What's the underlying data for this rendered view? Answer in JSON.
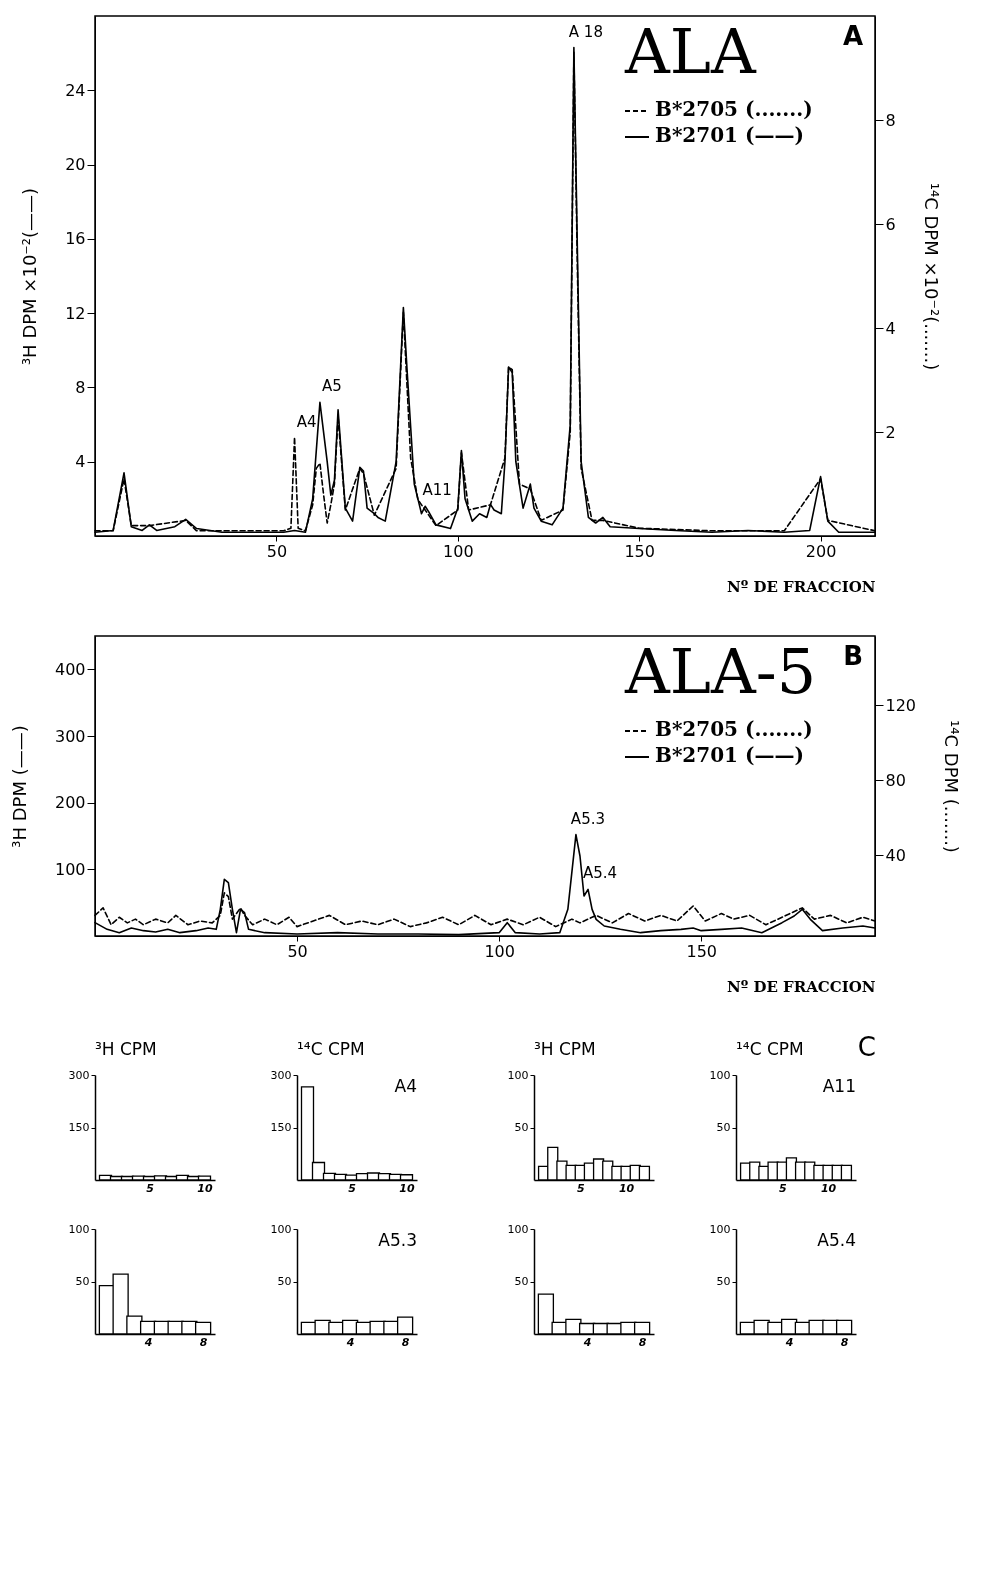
{
  "chart_data": [
    {
      "type": "line",
      "title": "ALA",
      "xlabel": "Nº DE FRACCION",
      "ylabel": "³H DPM ×10⁻²(——)",
      "y2label": "¹⁴C DPM ×10⁻²(.......)",
      "xlim": [
        0,
        215
      ],
      "xticks": [
        50,
        100,
        150,
        200
      ],
      "ylim": [
        0,
        28
      ],
      "yticks": [
        4,
        8,
        12,
        16,
        20,
        24
      ],
      "y2lim": [
        0,
        10
      ],
      "y2ticks": [
        2,
        4,
        6,
        8
      ],
      "legend": "top right",
      "grid": false,
      "series": [
        {
          "name": "B*2705 (.......)",
          "color": "#000000",
          "line_style": "dashed",
          "axis": "y2",
          "x": [
            0,
            5,
            8,
            10,
            15,
            25,
            28,
            40,
            52,
            54,
            55,
            56,
            58,
            60,
            61,
            62,
            63,
            64,
            65,
            66,
            67,
            69,
            73,
            74,
            77,
            83,
            85,
            87,
            89,
            91,
            94,
            100,
            101,
            103,
            109,
            113,
            114,
            115,
            117,
            120,
            123,
            129,
            131,
            132,
            133,
            134,
            137,
            140,
            150,
            170,
            190,
            200,
            202,
            215
          ],
          "values": [
            0.1,
            0.1,
            1.1,
            0.2,
            0.2,
            0.3,
            0.1,
            0.1,
            0.1,
            0.15,
            1.9,
            0.15,
            0.1,
            0.6,
            1.3,
            1.4,
            0.8,
            0.25,
            0.6,
            1.0,
            2.3,
            0.5,
            1.3,
            1.2,
            0.4,
            1.3,
            4.3,
            1.5,
            0.7,
            0.5,
            0.2,
            0.5,
            1.6,
            0.5,
            0.6,
            1.5,
            3.25,
            3.2,
            1.0,
            0.9,
            0.3,
            0.5,
            2.0,
            9.3,
            5,
            1.3,
            0.3,
            0.3,
            0.15,
            0.1,
            0.1,
            1.1,
            0.3,
            0.1
          ]
        },
        {
          "name": "B*2701 (——)",
          "color": "#000000",
          "line_style": "solid",
          "x": [
            0,
            5,
            8,
            10,
            13,
            15,
            17,
            22,
            25,
            28,
            35,
            45,
            52,
            55,
            58,
            60,
            62,
            64,
            65,
            66,
            67,
            69,
            71,
            73,
            74,
            75,
            77,
            78,
            80,
            83,
            85,
            86,
            88,
            89,
            90,
            91,
            92,
            94,
            98,
            100,
            101,
            102,
            104,
            106,
            108,
            109,
            110,
            112,
            113,
            114,
            115,
            116,
            118,
            120,
            121,
            123,
            126,
            129,
            131,
            132,
            133,
            134,
            136,
            138,
            140,
            142,
            150,
            160,
            170,
            180,
            190,
            197,
            200,
            202,
            205,
            215
          ],
          "values": [
            0.2,
            0.3,
            3.4,
            0.5,
            0.3,
            0.6,
            0.3,
            0.5,
            0.9,
            0.4,
            0.2,
            0.2,
            0.2,
            0.3,
            0.2,
            2,
            7.2,
            4,
            2.2,
            3,
            6.8,
            1.5,
            0.8,
            3.7,
            3.5,
            1.5,
            1.2,
            1,
            0.8,
            4,
            12.3,
            9,
            2.8,
            2,
            1.2,
            1.6,
            1.3,
            0.6,
            0.4,
            1.5,
            4.6,
            2,
            0.8,
            1.2,
            1.0,
            1.7,
            1.4,
            1.2,
            4,
            9.1,
            8.8,
            4,
            1.5,
            2.8,
            1.5,
            0.8,
            0.6,
            1.5,
            6,
            26.3,
            15,
            4,
            1.0,
            0.7,
            1.0,
            0.5,
            0.4,
            0.3,
            0.2,
            0.3,
            0.2,
            0.3,
            3.2,
            0.8,
            0.2,
            0.2
          ]
        }
      ],
      "annotations": [
        {
          "text": "A 18",
          "x": 132,
          "y": 26.3
        },
        {
          "text": "A5",
          "x": 62,
          "y": 7.2
        },
        {
          "text": "A4",
          "x": 55,
          "y": 5.3
        },
        {
          "text": "A11",
          "x": 91,
          "y": 1.6
        },
        "A"
      ]
    },
    {
      "type": "line",
      "title": "ALA-5",
      "xlabel": "Nº DE FRACCION",
      "ylabel": "³H DPM (——)",
      "y2label": "¹⁴C DPM (.......)",
      "xlim": [
        0,
        193
      ],
      "xticks": [
        50,
        100,
        150
      ],
      "ylim": [
        0,
        450
      ],
      "yticks": [
        100,
        200,
        300,
        400
      ],
      "y2lim": [
        -3,
        157
      ],
      "y2ticks": [
        40,
        80,
        120
      ],
      "legend": "top right",
      "grid": false,
      "series": [
        {
          "name": "B*2705 (.......)",
          "color": "#000000",
          "line_style": "dashed",
          "axis": "y2",
          "x": [
            0,
            2,
            4,
            6,
            8,
            10,
            12,
            15,
            18,
            20,
            23,
            26,
            29,
            31,
            32,
            33,
            34,
            36,
            37,
            39,
            42,
            45,
            48,
            50,
            54,
            58,
            62,
            66,
            70,
            74,
            78,
            82,
            86,
            90,
            94,
            98,
            102,
            106,
            110,
            114,
            118,
            120,
            124,
            128,
            132,
            136,
            140,
            144,
            148,
            151,
            155,
            158,
            162,
            166,
            170,
            175,
            178,
            182,
            186,
            190,
            193
          ],
          "values": [
            8,
            12,
            3,
            7,
            4,
            6,
            3,
            6,
            4,
            8,
            3,
            5,
            4,
            8,
            20,
            18,
            6,
            12,
            8,
            3,
            6,
            3,
            7,
            2,
            5,
            8,
            3,
            5,
            3,
            6,
            2,
            4,
            7,
            3,
            8,
            3,
            6,
            3,
            7,
            2,
            6,
            4,
            8,
            4,
            9,
            5,
            8,
            5,
            13,
            5,
            9,
            6,
            8,
            3,
            7,
            12,
            6,
            8,
            4,
            7,
            5
          ]
        },
        {
          "name": "B*2701 (——)",
          "color": "#000000",
          "line_style": "solid",
          "x": [
            0,
            3,
            6,
            9,
            12,
            15,
            18,
            21,
            25,
            28,
            30,
            31,
            32,
            33,
            34,
            35,
            36,
            37,
            38,
            42,
            50,
            60,
            70,
            80,
            90,
            100,
            102,
            104,
            110,
            115,
            117,
            119,
            120,
            121,
            122,
            123,
            124,
            126,
            130,
            135,
            140,
            145,
            148,
            150,
            155,
            160,
            165,
            170,
            173,
            175,
            177,
            180,
            185,
            190,
            193
          ],
          "values": [
            20,
            10,
            5,
            12,
            8,
            6,
            10,
            5,
            8,
            12,
            10,
            40,
            85,
            80,
            40,
            5,
            40,
            35,
            10,
            5,
            3,
            5,
            3,
            3,
            2,
            5,
            20,
            5,
            3,
            5,
            40,
            152,
            120,
            60,
            70,
            40,
            25,
            15,
            10,
            5,
            8,
            10,
            12,
            8,
            10,
            12,
            5,
            20,
            30,
            40,
            25,
            8,
            12,
            15,
            12
          ]
        }
      ],
      "annotations": [
        {
          "text": "A5.3",
          "x": 119,
          "y": 152
        },
        {
          "text": "A5.4",
          "x": 122,
          "y": 70
        },
        "B"
      ]
    },
    {
      "type": "bar",
      "title": "³H CPM",
      "x": [
        1,
        2,
        3,
        4,
        5,
        6,
        7,
        8,
        9,
        10
      ],
      "values": [
        13,
        10,
        10,
        11,
        10,
        12,
        10,
        13,
        10,
        11
      ],
      "color": "#ffffff",
      "xlim": [
        0.5,
        10.5
      ],
      "xticks": [
        5,
        10
      ],
      "ylim": [
        0,
        300
      ],
      "yticks": [
        150,
        300
      ]
    },
    {
      "type": "bar",
      "title": "¹⁴C CPM",
      "x": [
        1,
        2,
        3,
        4,
        5,
        6,
        7,
        8,
        9,
        10
      ],
      "values": [
        266,
        50,
        19,
        16,
        14,
        18,
        20,
        18,
        16,
        15
      ],
      "color": "#ffffff",
      "xlim": [
        0.5,
        10.5
      ],
      "xticks": [
        5,
        10
      ],
      "ylim": [
        0,
        300
      ],
      "yticks": [
        150,
        300
      ],
      "annotations": [
        "A4"
      ]
    },
    {
      "type": "bar",
      "title": "³H CPM",
      "x": [
        1,
        2,
        3,
        4,
        5,
        6,
        7,
        8,
        9,
        10,
        11,
        12
      ],
      "values": [
        13,
        31,
        18,
        14,
        14,
        16,
        20,
        18,
        13,
        13,
        14,
        13
      ],
      "color": "#ffffff",
      "xlim": [
        0.5,
        12.5
      ],
      "xticks": [
        5,
        10
      ],
      "ylim": [
        0,
        100
      ],
      "yticks": [
        50,
        100
      ]
    },
    {
      "type": "bar",
      "title": "¹⁴C CPM",
      "x": [
        1,
        2,
        3,
        4,
        5,
        6,
        7,
        8,
        9,
        10,
        11,
        12
      ],
      "values": [
        16,
        17,
        13,
        17,
        17,
        21,
        17,
        17,
        14,
        14,
        14,
        14
      ],
      "color": "#ffffff",
      "xlim": [
        0.5,
        12.5
      ],
      "xticks": [
        5,
        10
      ],
      "ylim": [
        0,
        100
      ],
      "yticks": [
        50,
        100
      ],
      "annotations": [
        "A11",
        "C"
      ]
    },
    {
      "type": "bar",
      "x": [
        1,
        2,
        3,
        4,
        5,
        6,
        7,
        8
      ],
      "values": [
        46,
        57,
        17,
        12,
        12,
        12,
        12,
        11
      ],
      "color": "#ffffff",
      "xlim": [
        0.5,
        8.5
      ],
      "xticks": [
        4,
        8
      ],
      "ylim": [
        0,
        100
      ],
      "yticks": [
        50,
        100
      ]
    },
    {
      "type": "bar",
      "x": [
        1,
        2,
        3,
        4,
        5,
        6,
        7,
        8
      ],
      "values": [
        11,
        13,
        11,
        13,
        11,
        12,
        12,
        16
      ],
      "color": "#ffffff",
      "xlim": [
        0.5,
        8.5
      ],
      "xticks": [
        4,
        8
      ],
      "ylim": [
        0,
        100
      ],
      "yticks": [
        50,
        100
      ],
      "annotations": [
        "A5.3"
      ]
    },
    {
      "type": "bar",
      "x": [
        1,
        2,
        3,
        4,
        5,
        6,
        7,
        8
      ],
      "values": [
        38,
        11,
        14,
        10,
        10,
        10,
        11,
        11
      ],
      "color": "#ffffff",
      "xlim": [
        0.5,
        8.5
      ],
      "xticks": [
        4,
        8
      ],
      "ylim": [
        0,
        100
      ],
      "yticks": [
        50,
        100
      ]
    },
    {
      "type": "bar",
      "x": [
        1,
        2,
        3,
        4,
        5,
        6,
        7,
        8
      ],
      "values": [
        11,
        13,
        11,
        14,
        11,
        13,
        13,
        13
      ],
      "color": "#ffffff",
      "xlim": [
        0.5,
        8.5
      ],
      "xticks": [
        4,
        8
      ],
      "ylim": [
        0,
        100
      ],
      "yticks": [
        50,
        100
      ],
      "annotations": [
        "A5.4"
      ]
    }
  ]
}
